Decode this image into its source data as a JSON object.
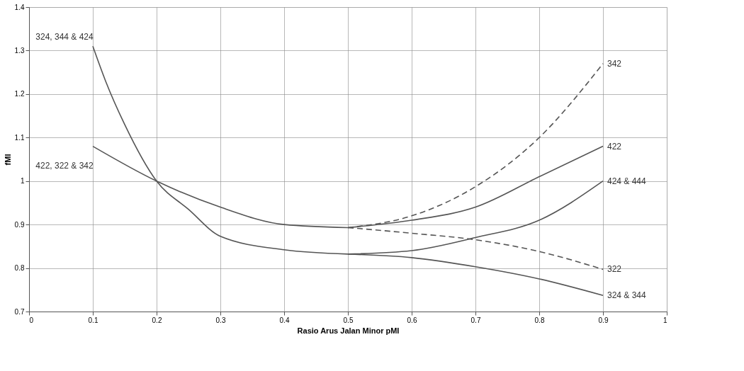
{
  "chart_data": {
    "type": "line",
    "xlabel": "Rasio Arus Jalan Minor pMI",
    "ylabel": "fMI",
    "xlim": [
      0,
      1
    ],
    "ylim": [
      0.7,
      1.4
    ],
    "xticks": [
      0,
      0.1,
      0.2,
      0.3,
      0.4,
      0.5,
      0.6,
      0.7,
      0.8,
      0.9,
      1
    ],
    "yticks": [
      0.7,
      0.8,
      0.9,
      1,
      1.1,
      1.2,
      1.3,
      1.4
    ],
    "grid": true,
    "series": [
      {
        "name": "324, 344 & 424",
        "color": "#555555",
        "line_style": "solid",
        "x": [
          0.1,
          0.12,
          0.15,
          0.2,
          0.25,
          0.3,
          0.4,
          0.5
        ],
        "values": [
          1.31,
          1.23,
          1.13,
          1.0,
          0.935,
          0.873,
          0.842,
          0.832
        ]
      },
      {
        "name": "422, 322 & 342",
        "color": "#555555",
        "line_style": "solid",
        "x": [
          0.1,
          0.2,
          0.3,
          0.4,
          0.5
        ],
        "values": [
          1.08,
          1.0,
          0.94,
          0.9,
          0.893
        ]
      },
      {
        "name": "342",
        "color": "#555555",
        "line_style": "dashed",
        "x": [
          0.5,
          0.6,
          0.7,
          0.8,
          0.9
        ],
        "values": [
          0.893,
          0.92,
          0.987,
          1.1,
          1.27
        ]
      },
      {
        "name": "422",
        "color": "#555555",
        "line_style": "solid",
        "x": [
          0.5,
          0.6,
          0.7,
          0.8,
          0.9
        ],
        "values": [
          0.893,
          0.91,
          0.94,
          1.01,
          1.08
        ]
      },
      {
        "name": "424 & 444",
        "color": "#555555",
        "line_style": "solid",
        "x": [
          0.5,
          0.6,
          0.7,
          0.8,
          0.9
        ],
        "values": [
          0.832,
          0.84,
          0.87,
          0.91,
          1.0
        ]
      },
      {
        "name": "322",
        "color": "#555555",
        "line_style": "dashed",
        "x": [
          0.5,
          0.6,
          0.7,
          0.8,
          0.9
        ],
        "values": [
          0.893,
          0.88,
          0.865,
          0.838,
          0.797
        ]
      },
      {
        "name": "324 & 344",
        "color": "#555555",
        "line_style": "solid",
        "x": [
          0.5,
          0.6,
          0.7,
          0.8,
          0.9
        ],
        "values": [
          0.832,
          0.824,
          0.803,
          0.775,
          0.737
        ]
      }
    ]
  }
}
